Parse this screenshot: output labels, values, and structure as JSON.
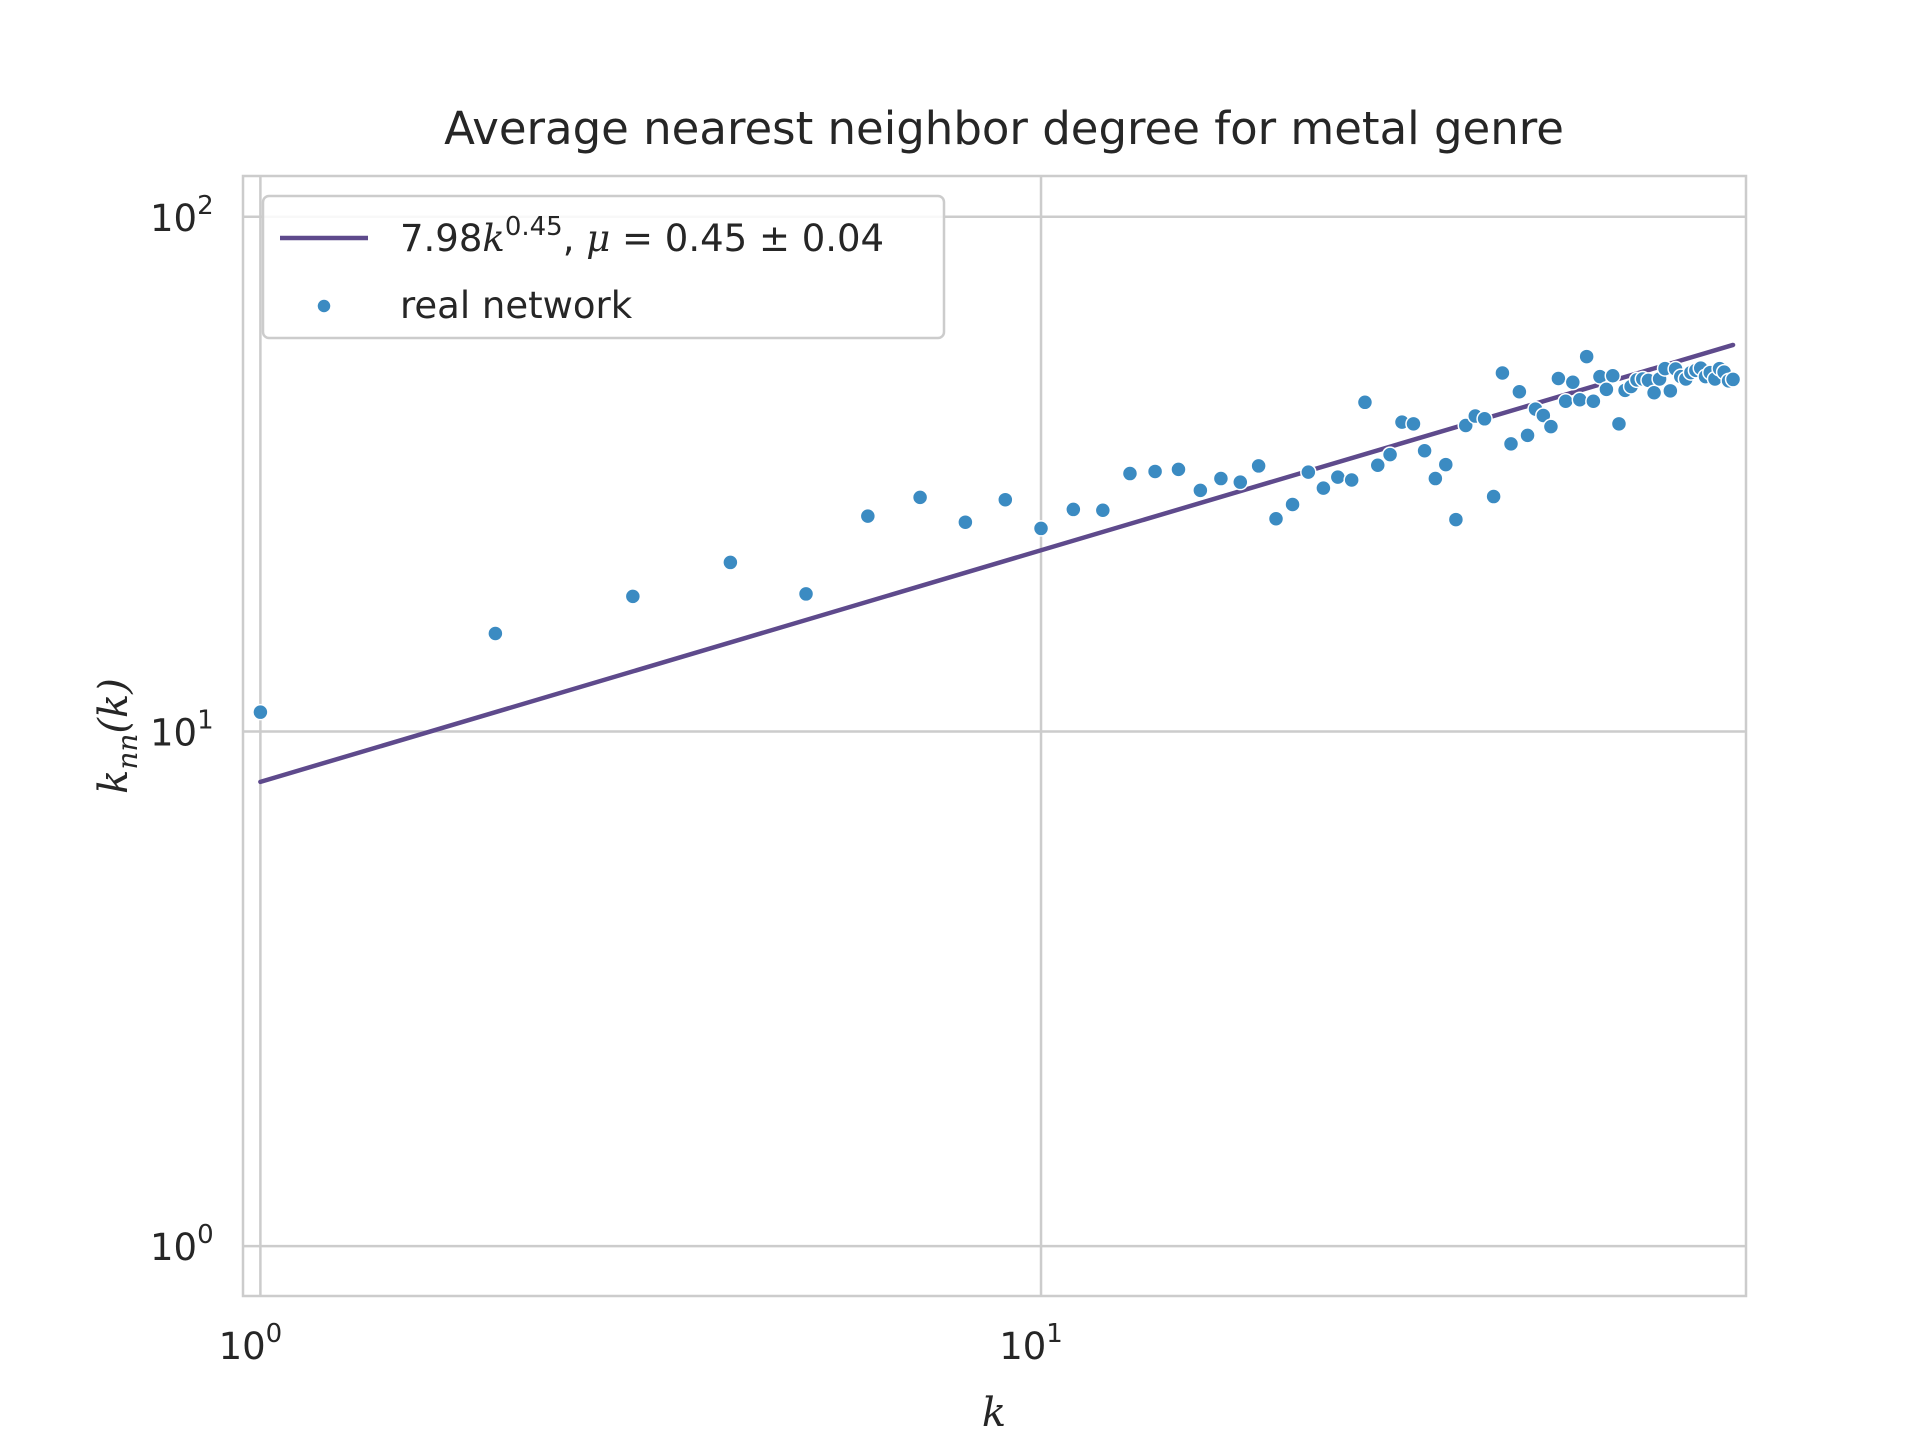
{
  "chart_data": {
    "type": "scatter",
    "title": "Average nearest neighbor degree for metal genre",
    "xlabel": "k",
    "ylabel": "k_nn(k)",
    "xscale": "log",
    "yscale": "log",
    "xlim": [
      0.95,
      80
    ],
    "ylim": [
      0.8,
      120
    ],
    "grid": true,
    "legend_position": "top-left",
    "x_ticks": [
      {
        "base": "10",
        "exp": "0",
        "value": 1
      },
      {
        "base": "10",
        "exp": "1",
        "value": 10
      }
    ],
    "y_ticks": [
      {
        "base": "10",
        "exp": "0",
        "value": 1
      },
      {
        "base": "10",
        "exp": "1",
        "value": 10
      },
      {
        "base": "10",
        "exp": "2",
        "value": 100
      }
    ],
    "series": [
      {
        "name": "7.98k^0.45, μ = 0.45 ± 0.04",
        "kind": "line",
        "color": "#5e4a8c",
        "coefficient": 7.98,
        "exponent": 0.45,
        "x_range": [
          1,
          77
        ]
      },
      {
        "name": "real network",
        "kind": "scatter",
        "color": "#3b8bc2",
        "points": [
          [
            1,
            10.9
          ],
          [
            2,
            15.5
          ],
          [
            3,
            18.3
          ],
          [
            4,
            21.3
          ],
          [
            5,
            18.5
          ],
          [
            6,
            26.2
          ],
          [
            7,
            28.5
          ],
          [
            8,
            25.5
          ],
          [
            9,
            28.2
          ],
          [
            10,
            24.8
          ],
          [
            11,
            27.0
          ],
          [
            12,
            26.9
          ],
          [
            13,
            31.7
          ],
          [
            14,
            32.0
          ],
          [
            15,
            32.3
          ],
          [
            16,
            29.4
          ],
          [
            17,
            31.0
          ],
          [
            18,
            30.5
          ],
          [
            19,
            32.8
          ],
          [
            20,
            25.9
          ],
          [
            21,
            27.6
          ],
          [
            22,
            31.9
          ],
          [
            23,
            29.7
          ],
          [
            24,
            31.2
          ],
          [
            25,
            30.8
          ],
          [
            26,
            43.6
          ],
          [
            27,
            32.9
          ],
          [
            28,
            34.5
          ],
          [
            29,
            39.9
          ],
          [
            30,
            39.6
          ],
          [
            31,
            35.1
          ],
          [
            32,
            31.0
          ],
          [
            33,
            33.0
          ],
          [
            34,
            25.8
          ],
          [
            35,
            39.3
          ],
          [
            36,
            41.0
          ],
          [
            37,
            40.5
          ],
          [
            38,
            28.6
          ],
          [
            39,
            49.7
          ],
          [
            40,
            36.2
          ],
          [
            41,
            45.7
          ],
          [
            42,
            37.6
          ],
          [
            43,
            42.3
          ],
          [
            44,
            41.1
          ],
          [
            45,
            39.1
          ],
          [
            46,
            48.5
          ],
          [
            47,
            43.8
          ],
          [
            48,
            47.7
          ],
          [
            49,
            44.1
          ],
          [
            50,
            53.5
          ],
          [
            51,
            43.8
          ],
          [
            52,
            48.9
          ],
          [
            53,
            46.2
          ],
          [
            54,
            49.1
          ],
          [
            55,
            39.6
          ],
          [
            56,
            46.0
          ],
          [
            57,
            46.8
          ],
          [
            58,
            48.2
          ],
          [
            59,
            48.4
          ],
          [
            60,
            48.1
          ],
          [
            61,
            45.5
          ],
          [
            62,
            48.4
          ],
          [
            63,
            50.7
          ],
          [
            64,
            45.9
          ],
          [
            65,
            50.6
          ],
          [
            66,
            48.9
          ],
          [
            67,
            48.4
          ],
          [
            68,
            49.8
          ],
          [
            69,
            50.3
          ],
          [
            70,
            50.8
          ],
          [
            71,
            48.9
          ],
          [
            72,
            49.8
          ],
          [
            73,
            48.4
          ],
          [
            74,
            50.7
          ],
          [
            75,
            49.9
          ],
          [
            76,
            48.0
          ],
          [
            77,
            48.3
          ]
        ]
      }
    ]
  }
}
